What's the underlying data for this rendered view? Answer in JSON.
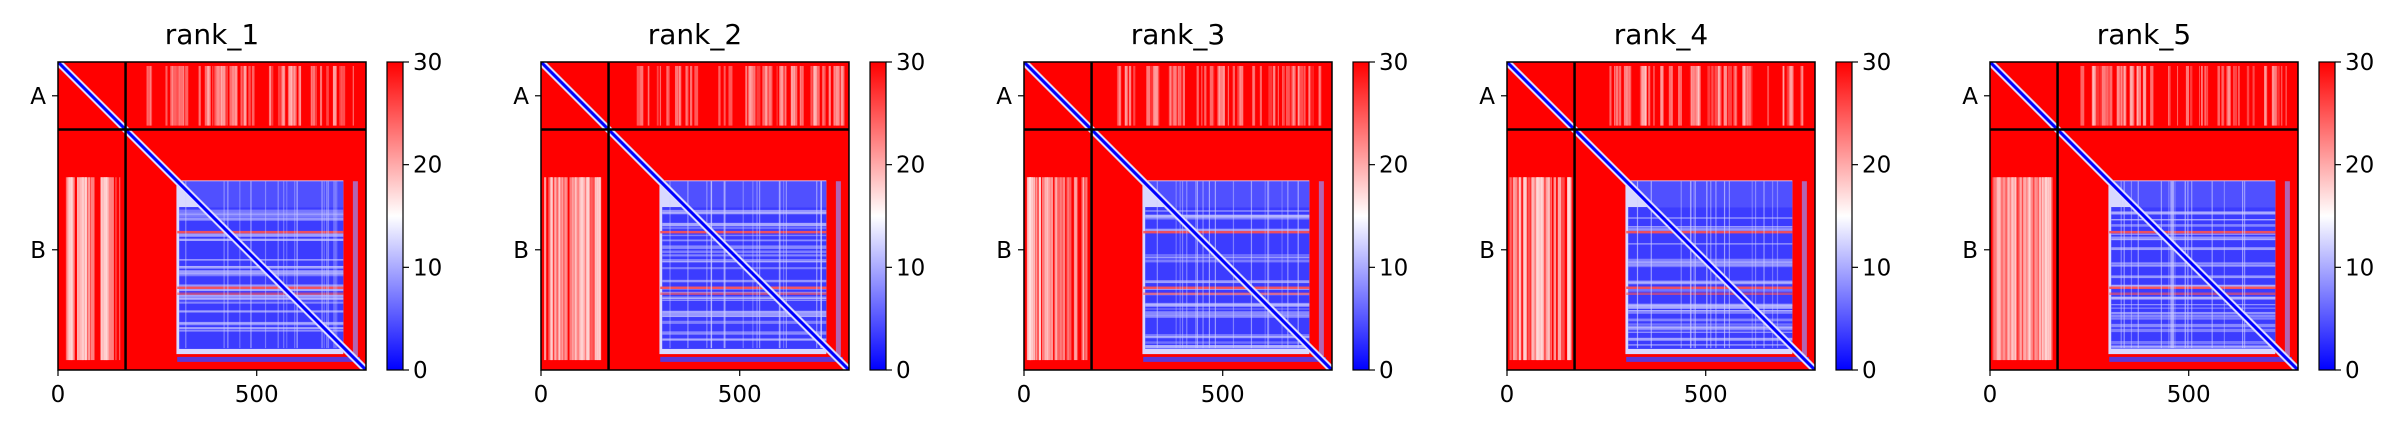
{
  "colors": {
    "red": "#ff0000",
    "white": "#ffffff",
    "blue": "#0000ff",
    "divider": "#000000"
  },
  "colorbar": {
    "colormap": "bwr",
    "vmin": 0,
    "vmax": 30,
    "ticks": [
      "0",
      "10",
      "20",
      "30"
    ]
  },
  "chart_data": [
    {
      "type": "heatmap",
      "title": "rank_1",
      "xlim": [
        0,
        775
      ],
      "ylim": [
        775,
        0
      ],
      "xticks": [
        "0",
        "500"
      ],
      "yticks": [
        "A",
        "B"
      ],
      "chain_boundary": 170
    },
    {
      "type": "heatmap",
      "title": "rank_2",
      "xlim": [
        0,
        775
      ],
      "ylim": [
        775,
        0
      ],
      "xticks": [
        "0",
        "500"
      ],
      "yticks": [
        "A",
        "B"
      ],
      "chain_boundary": 170
    },
    {
      "type": "heatmap",
      "title": "rank_3",
      "xlim": [
        0,
        775
      ],
      "ylim": [
        775,
        0
      ],
      "xticks": [
        "0",
        "500"
      ],
      "yticks": [
        "A",
        "B"
      ],
      "chain_boundary": 170
    },
    {
      "type": "heatmap",
      "title": "rank_4",
      "xlim": [
        0,
        775
      ],
      "ylim": [
        775,
        0
      ],
      "xticks": [
        "0",
        "500"
      ],
      "yticks": [
        "A",
        "B"
      ],
      "chain_boundary": 170
    },
    {
      "type": "heatmap",
      "title": "rank_5",
      "xlim": [
        0,
        775
      ],
      "ylim": [
        775,
        0
      ],
      "xticks": [
        "0",
        "500"
      ],
      "yticks": [
        "A",
        "B"
      ],
      "chain_boundary": 170
    }
  ]
}
